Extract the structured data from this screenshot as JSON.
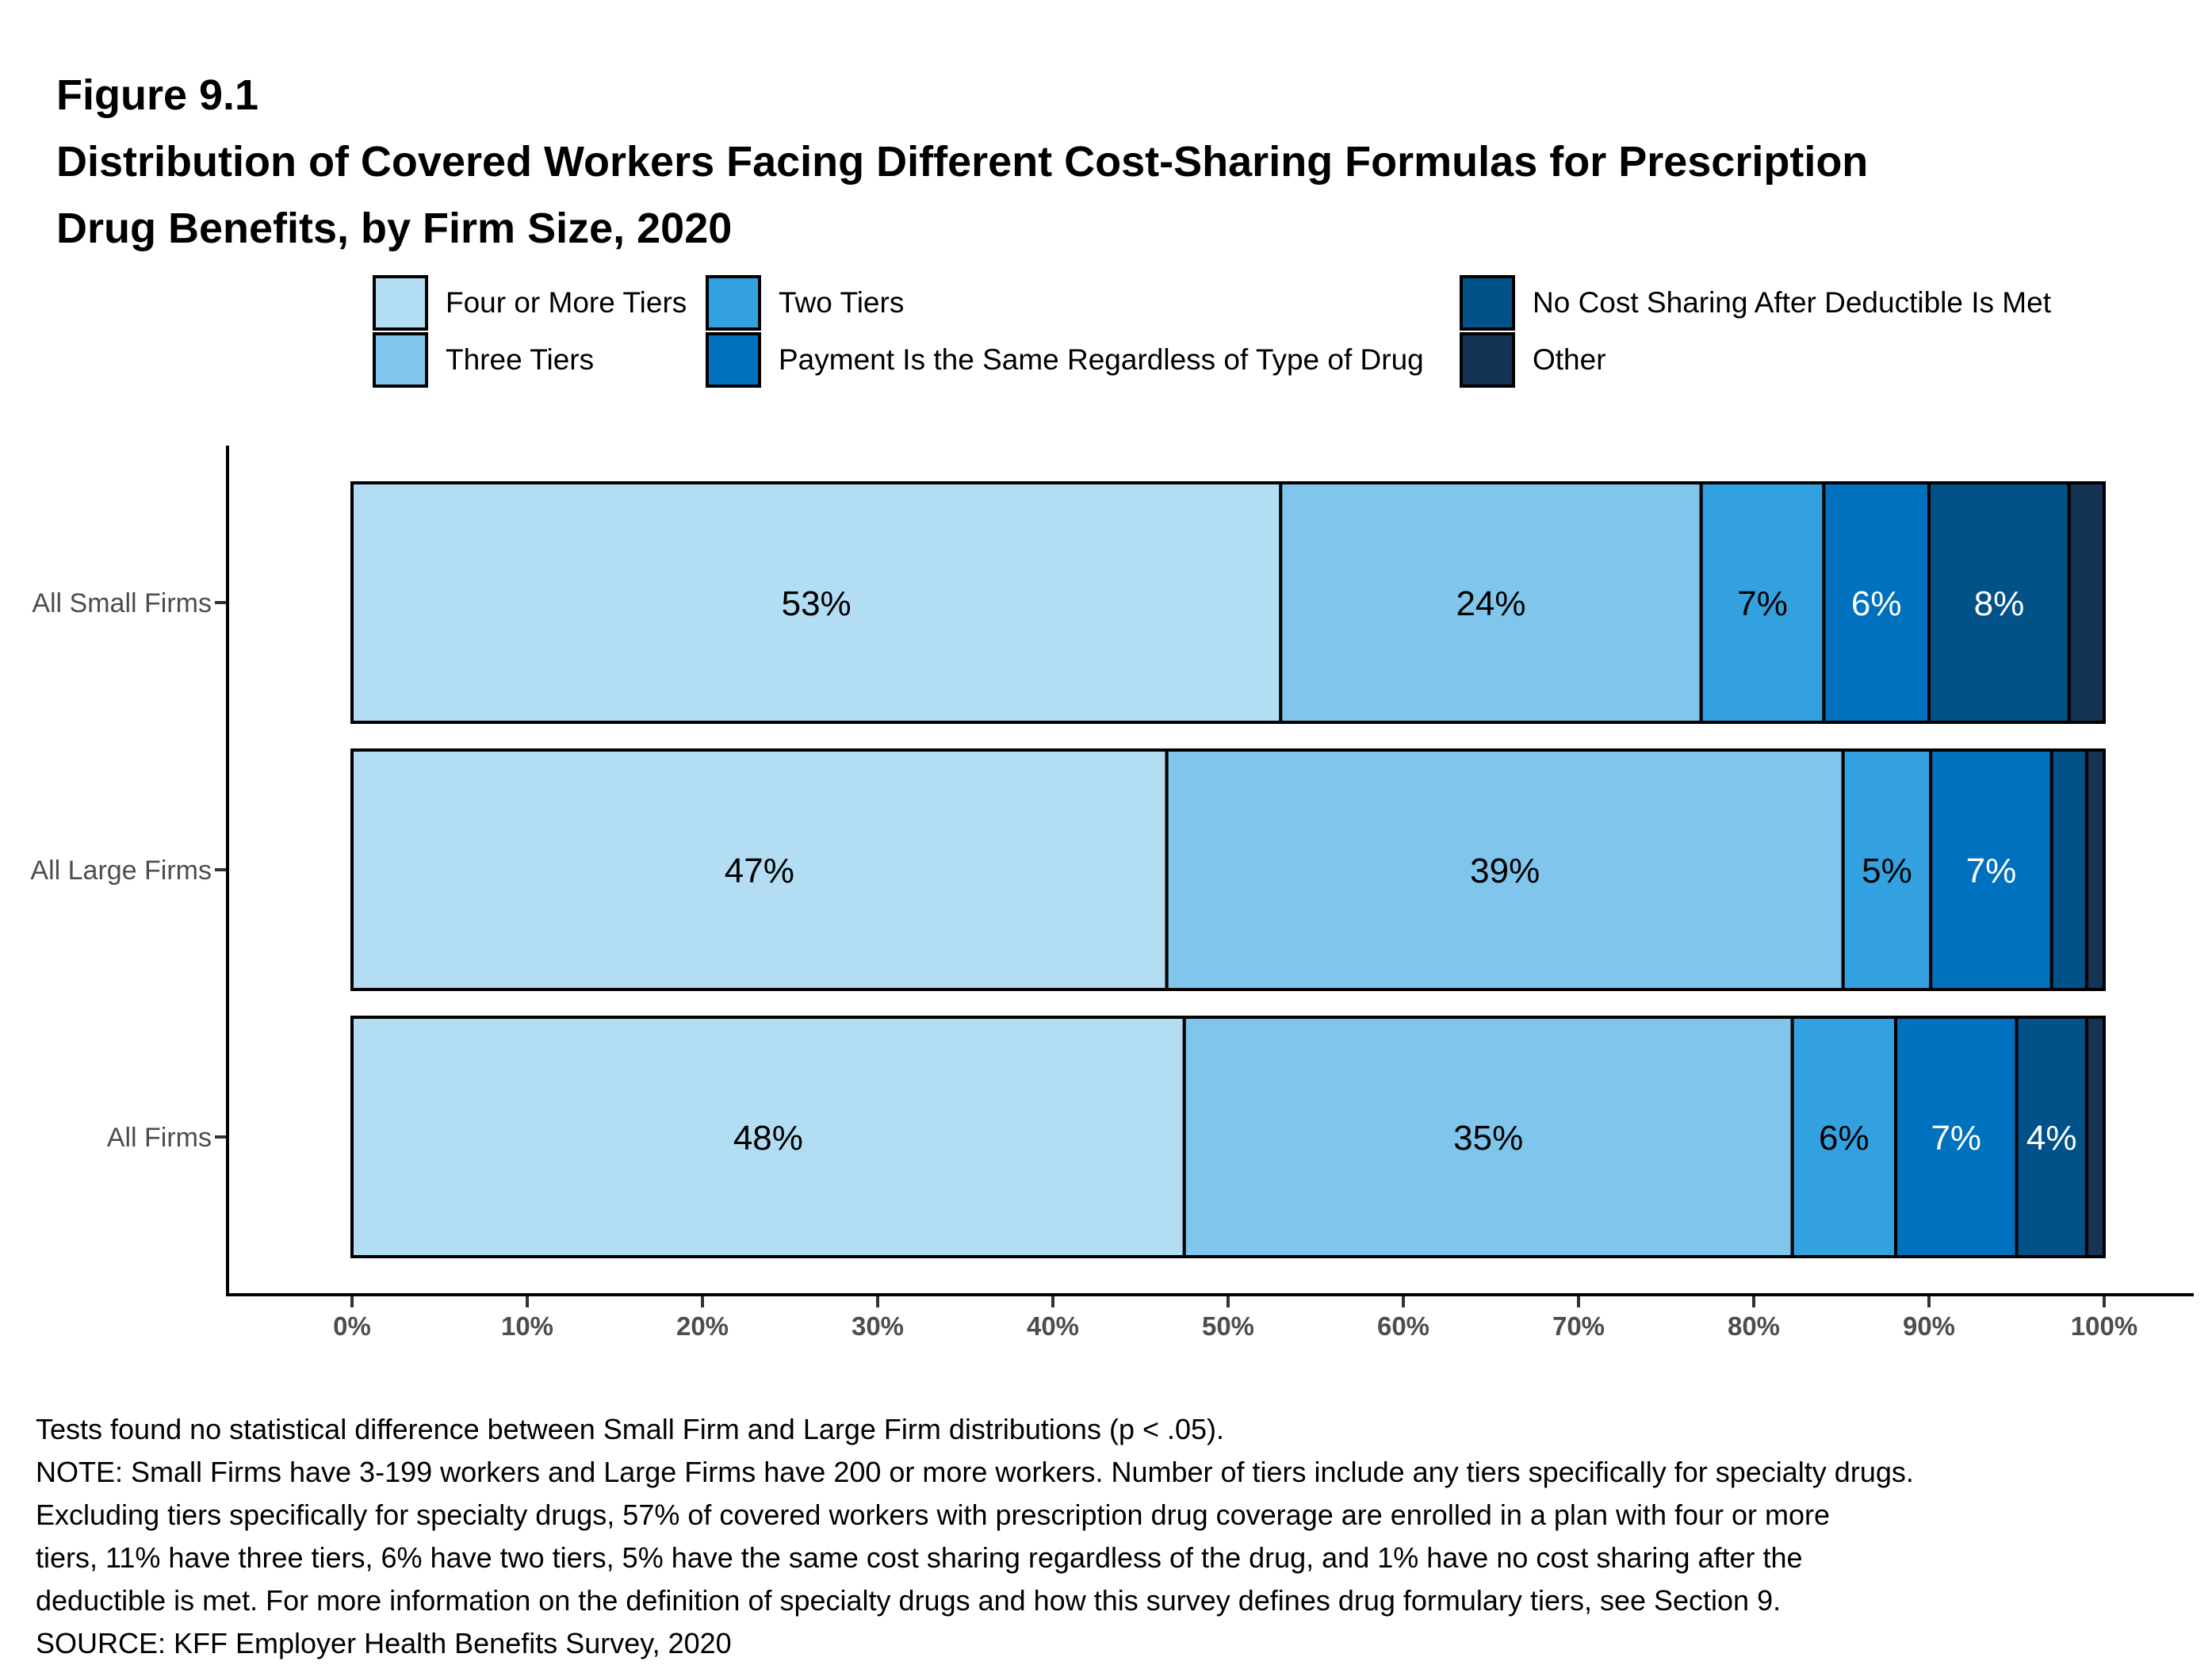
{
  "figure": {
    "number": "Figure 9.1",
    "title_line1": "Distribution of Covered Workers Facing Different Cost-Sharing Formulas for Prescription",
    "title_line2": "Drug Benefits, by Firm Size, 2020"
  },
  "legend": [
    {
      "key": "four",
      "label": "Four or More Tiers",
      "color": "#b2ddf3"
    },
    {
      "key": "three",
      "label": "Three Tiers",
      "color": "#7fc5ec"
    },
    {
      "key": "two",
      "label": "Two Tiers",
      "color": "#33a1df"
    },
    {
      "key": "payment",
      "label": "Payment Is the Same Regardless of Type of Drug",
      "color": "#0071bf"
    },
    {
      "key": "nocost",
      "label": "No Cost Sharing After Deductible Is Met",
      "color": "#035189"
    },
    {
      "key": "other",
      "label": "Other",
      "color": "#153354"
    }
  ],
  "chart_data": {
    "type": "bar",
    "orientation": "horizontal",
    "stacked": true,
    "title": "Distribution of Covered Workers Facing Different Cost-Sharing Formulas for Prescription Drug Benefits, by Firm Size, 2020",
    "xlabel": "",
    "ylabel": "",
    "xlim": [
      0,
      100
    ],
    "x_ticks": [
      "0%",
      "10%",
      "20%",
      "30%",
      "40%",
      "50%",
      "60%",
      "70%",
      "80%",
      "90%",
      "100%"
    ],
    "categories": [
      "All Small Firms",
      "All Large Firms",
      "All Firms"
    ],
    "legend_position": "top",
    "grid": false,
    "series": [
      {
        "name": "Four or More Tiers",
        "color": "#b2ddf3",
        "label_color": "#000000",
        "values": [
          53,
          46.5,
          47.5
        ],
        "labels": [
          "53%",
          "47%",
          "48%"
        ]
      },
      {
        "name": "Three Tiers",
        "color": "#7fc5ec",
        "label_color": "#000000",
        "values": [
          24,
          38.6,
          34.7
        ],
        "labels": [
          "24%",
          "39%",
          "35%"
        ]
      },
      {
        "name": "Two Tiers",
        "color": "#33a1df",
        "label_color": "#000000",
        "values": [
          7,
          5,
          5.9
        ],
        "labels": [
          "7%",
          "5%",
          "6%"
        ]
      },
      {
        "name": "Payment Is the Same Regardless of Type of Drug",
        "color": "#0071bf",
        "label_color": "#ffffff",
        "values": [
          6,
          6.9,
          6.9
        ],
        "labels": [
          "6%",
          "7%",
          "7%"
        ]
      },
      {
        "name": "No Cost Sharing After Deductible Is Met",
        "color": "#035189",
        "label_color": "#ffffff",
        "values": [
          8,
          2,
          4
        ],
        "labels": [
          "8%",
          null,
          "4%"
        ]
      },
      {
        "name": "Other",
        "color": "#153354",
        "label_color": "#ffffff",
        "values": [
          2,
          1,
          1
        ],
        "labels": [
          null,
          null,
          null
        ]
      }
    ]
  },
  "footnotes": [
    "Tests found no statistical difference between Small Firm and Large Firm distributions (p < .05).",
    "NOTE: Small Firms have 3-199 workers and Large Firms have 200 or more workers. Number of tiers include any tiers specifically for specialty drugs.",
    "Excluding tiers specifically for specialty drugs, 57% of covered workers with prescription drug coverage are enrolled in a plan with four or more",
    "tiers, 11% have three tiers, 6% have two tiers, 5% have the same cost sharing regardless of the drug, and 1% have no cost sharing after the",
    "deductible is met. For more information on the definition of specialty drugs and how this survey defines drug formulary tiers, see Section 9.",
    "SOURCE: KFF Employer Health Benefits Survey, 2020"
  ]
}
